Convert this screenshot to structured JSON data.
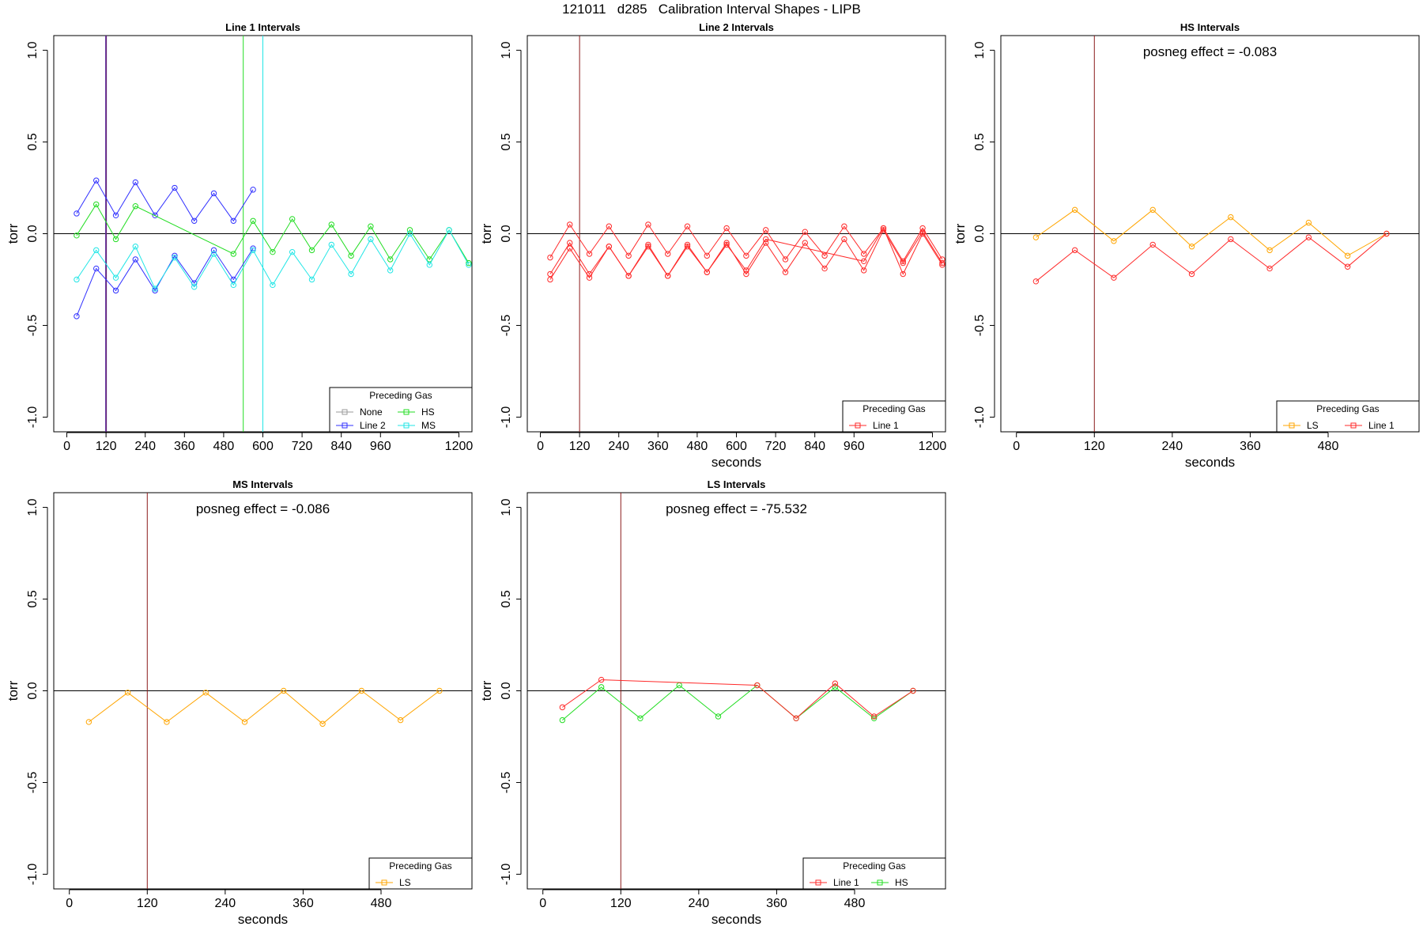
{
  "page": {
    "title": "121011   d285   Calibration Interval Shapes - LIPB"
  },
  "colors": {
    "None": "#9a9a9a",
    "Line 2": "#3030ff",
    "HS": "#22dd22",
    "MS": "#22e6e6",
    "Line 1": "#ff2a2a",
    "LS": "#ffa500",
    "marker": "#8b1a1a",
    "axis": "#000000"
  },
  "chart_data": [
    {
      "type": "line",
      "title": "Line 1 Intervals",
      "xlabel": "",
      "ylabel": "torr",
      "xlim": [
        -40,
        1240
      ],
      "ylim": [
        -1.08,
        1.08
      ],
      "xticks": [
        0,
        120,
        240,
        360,
        480,
        600,
        720,
        840,
        960,
        1200
      ],
      "yticks": [
        1.0,
        0.5,
        0.0,
        -0.5,
        -1.0
      ],
      "yticklabels": [
        "1.0",
        "0.5",
        "0.0",
        "-0.5",
        "-1.0"
      ],
      "vlines": [
        {
          "x": 120,
          "color": "#3030ff"
        },
        {
          "x": 120,
          "color": "#8b1a1a"
        },
        {
          "x": 540,
          "color": "#22dd22"
        },
        {
          "x": 600,
          "color": "#22e6e6"
        }
      ],
      "annotation": "",
      "legend": {
        "title": "Preceding Gas",
        "position": "bottom-right",
        "columns": 2,
        "entries": [
          "None",
          "HS",
          "Line 2",
          "MS"
        ]
      },
      "series": [
        {
          "name": "Line 2",
          "segments": [
            {
              "x": [
                30,
                90,
                150,
                210,
                270,
                330,
                390,
                450,
                510,
                570
              ],
              "y": [
                0.11,
                0.29,
                0.1,
                0.28,
                0.1,
                0.25,
                0.07,
                0.22,
                0.07,
                0.24
              ]
            },
            {
              "x": [
                30,
                90,
                150,
                210,
                270,
                330,
                390,
                450,
                510,
                570
              ],
              "y": [
                -0.45,
                -0.19,
                -0.31,
                -0.14,
                -0.31,
                -0.12,
                -0.27,
                -0.09,
                -0.25,
                -0.08
              ]
            }
          ]
        },
        {
          "name": "HS",
          "segments": [
            {
              "x": [
                30,
                90,
                150,
                210,
                510,
                570,
                630,
                690,
                750,
                810,
                870,
                930,
                990,
                1050,
                1110,
                1170,
                1230
              ],
              "y": [
                -0.01,
                0.16,
                -0.03,
                0.15,
                -0.11,
                0.07,
                -0.1,
                0.08,
                -0.09,
                0.05,
                -0.12,
                0.04,
                -0.14,
                0.02,
                -0.14,
                0.02,
                -0.16
              ]
            }
          ]
        },
        {
          "name": "MS",
          "segments": [
            {
              "x": [
                30,
                90,
                150,
                210,
                270,
                330,
                390,
                450,
                510,
                570,
                630,
                690,
                750,
                810,
                870,
                930,
                990,
                1050,
                1110,
                1170,
                1230
              ],
              "y": [
                -0.25,
                -0.09,
                -0.24,
                -0.07,
                -0.3,
                -0.13,
                -0.29,
                -0.11,
                -0.28,
                -0.09,
                -0.28,
                -0.1,
                -0.25,
                -0.06,
                -0.22,
                -0.03,
                -0.2,
                0.0,
                -0.17,
                0.02,
                -0.17
              ]
            }
          ]
        }
      ]
    },
    {
      "type": "line",
      "title": "Line 2 Intervals",
      "xlabel": "seconds",
      "ylabel": "torr",
      "xlim": [
        -40,
        1240
      ],
      "ylim": [
        -1.08,
        1.08
      ],
      "xticks": [
        0,
        120,
        240,
        360,
        480,
        600,
        720,
        840,
        960,
        1200
      ],
      "yticks": [
        1.0,
        0.5,
        0.0,
        -0.5,
        -1.0
      ],
      "yticklabels": [
        "1.0",
        "0.5",
        "0.0",
        "-0.5",
        "-1.0"
      ],
      "vlines": [
        {
          "x": 120,
          "color": "#8b1a1a"
        }
      ],
      "annotation": "",
      "legend": {
        "title": "Preceding Gas",
        "position": "bottom-right",
        "columns": 1,
        "entries": [
          "Line 1"
        ]
      },
      "series": [
        {
          "name": "Line 1",
          "segments": [
            {
              "x": [
                30,
                90,
                150,
                210,
                270,
                330,
                390,
                450,
                510,
                570,
                630,
                690,
                750,
                810,
                870,
                930,
                990,
                1050,
                1110,
                1170,
                1230
              ],
              "y": [
                -0.13,
                0.05,
                -0.11,
                0.04,
                -0.12,
                0.05,
                -0.11,
                0.04,
                -0.12,
                0.03,
                -0.12,
                0.02,
                -0.14,
                0.01,
                -0.12,
                0.04,
                -0.11,
                0.03,
                -0.15,
                0.03,
                -0.14
              ]
            },
            {
              "x": [
                30,
                90,
                150,
                210,
                270,
                330,
                390,
                450,
                510,
                570,
                630,
                690,
                750,
                810,
                870,
                930,
                990,
                1050,
                1110,
                1170,
                1230
              ],
              "y": [
                -0.22,
                -0.05,
                -0.22,
                -0.07,
                -0.23,
                -0.06,
                -0.23,
                -0.06,
                -0.21,
                -0.05,
                -0.22,
                -0.05,
                -0.21,
                -0.05,
                -0.19,
                -0.03,
                -0.2,
                0.02,
                -0.16,
                0.01,
                -0.16
              ]
            },
            {
              "x": [
                30,
                90,
                150,
                210,
                270,
                330,
                390,
                450,
                510,
                570,
                630,
                690,
                990,
                1050,
                1110,
                1170,
                1230
              ],
              "y": [
                -0.25,
                -0.08,
                -0.24,
                -0.07,
                -0.23,
                -0.07,
                -0.23,
                -0.07,
                -0.21,
                -0.06,
                -0.2,
                -0.03,
                -0.15,
                0.03,
                -0.22,
                0.0,
                -0.17
              ]
            }
          ]
        }
      ]
    },
    {
      "type": "line",
      "title": "HS Intervals",
      "xlabel": "seconds",
      "ylabel": "torr",
      "xlim": [
        -24,
        620
      ],
      "ylim": [
        -1.08,
        1.08
      ],
      "xticks": [
        0,
        120,
        240,
        360,
        480
      ],
      "yticks": [
        1.0,
        0.5,
        0.0,
        -0.5,
        -1.0
      ],
      "yticklabels": [
        "1.0",
        "0.5",
        "0.0",
        "-0.5",
        "-1.0"
      ],
      "vlines": [
        {
          "x": 120,
          "color": "#8b1a1a"
        }
      ],
      "annotation": "posneg effect = -0.083",
      "legend": {
        "title": "Preceding Gas",
        "position": "bottom-right",
        "columns": 2,
        "entries": [
          "LS",
          "Line 1"
        ]
      },
      "series": [
        {
          "name": "LS",
          "segments": [
            {
              "x": [
                30,
                90,
                150,
                210,
                270,
                330,
                390,
                450,
                510,
                570
              ],
              "y": [
                -0.02,
                0.13,
                -0.04,
                0.13,
                -0.07,
                0.09,
                -0.09,
                0.06,
                -0.12,
                0.0
              ]
            }
          ]
        },
        {
          "name": "Line 1",
          "segments": [
            {
              "x": [
                30,
                90,
                150,
                210,
                270,
                330,
                390,
                450,
                510,
                570
              ],
              "y": [
                -0.26,
                -0.09,
                -0.24,
                -0.06,
                -0.22,
                -0.03,
                -0.19,
                -0.02,
                -0.18,
                0.0
              ]
            }
          ]
        }
      ]
    },
    {
      "type": "line",
      "title": "MS Intervals",
      "xlabel": "seconds",
      "ylabel": "torr",
      "xlim": [
        -24,
        620
      ],
      "ylim": [
        -1.08,
        1.08
      ],
      "xticks": [
        0,
        120,
        240,
        360,
        480
      ],
      "yticks": [
        1.0,
        0.5,
        0.0,
        -0.5,
        -1.0
      ],
      "yticklabels": [
        "1.0",
        "0.5",
        "0.0",
        "-0.5",
        "-1.0"
      ],
      "vlines": [
        {
          "x": 120,
          "color": "#8b1a1a"
        }
      ],
      "annotation": "posneg effect = -0.086",
      "legend": {
        "title": "Preceding Gas",
        "position": "bottom-right",
        "columns": 1,
        "entries": [
          "LS"
        ]
      },
      "series": [
        {
          "name": "LS",
          "segments": [
            {
              "x": [
                30,
                90,
                150,
                210,
                270,
                330,
                390,
                450,
                510,
                570
              ],
              "y": [
                -0.17,
                -0.01,
                -0.17,
                -0.01,
                -0.17,
                0.0,
                -0.18,
                0.0,
                -0.16,
                0.0
              ]
            }
          ]
        }
      ]
    },
    {
      "type": "line",
      "title": "LS Intervals",
      "xlabel": "seconds",
      "ylabel": "torr",
      "xlim": [
        -24,
        620
      ],
      "ylim": [
        -1.08,
        1.08
      ],
      "xticks": [
        0,
        120,
        240,
        360,
        480
      ],
      "yticks": [
        1.0,
        0.5,
        0.0,
        -0.5,
        -1.0
      ],
      "yticklabels": [
        "1.0",
        "0.5",
        "0.0",
        "-0.5",
        "-1.0"
      ],
      "vlines": [
        {
          "x": 120,
          "color": "#8b1a1a"
        }
      ],
      "annotation": "posneg effect = -75.532",
      "legend": {
        "title": "Preceding Gas",
        "position": "bottom-right",
        "columns": 2,
        "entries": [
          "Line 1",
          "HS"
        ]
      },
      "series": [
        {
          "name": "HS",
          "segments": [
            {
              "x": [
                30,
                90,
                150,
                210,
                270,
                330,
                390,
                450,
                510,
                570
              ],
              "y": [
                -0.16,
                0.02,
                -0.15,
                0.03,
                -0.14,
                0.03,
                -0.15,
                0.02,
                -0.15,
                0.0
              ]
            }
          ]
        },
        {
          "name": "Line 1",
          "segments": [
            {
              "x": [
                30,
                90,
                330,
                390,
                450,
                510,
                570
              ],
              "y": [
                -0.09,
                0.06,
                0.03,
                -0.15,
                0.04,
                -0.14,
                0.0
              ]
            }
          ]
        }
      ]
    }
  ]
}
